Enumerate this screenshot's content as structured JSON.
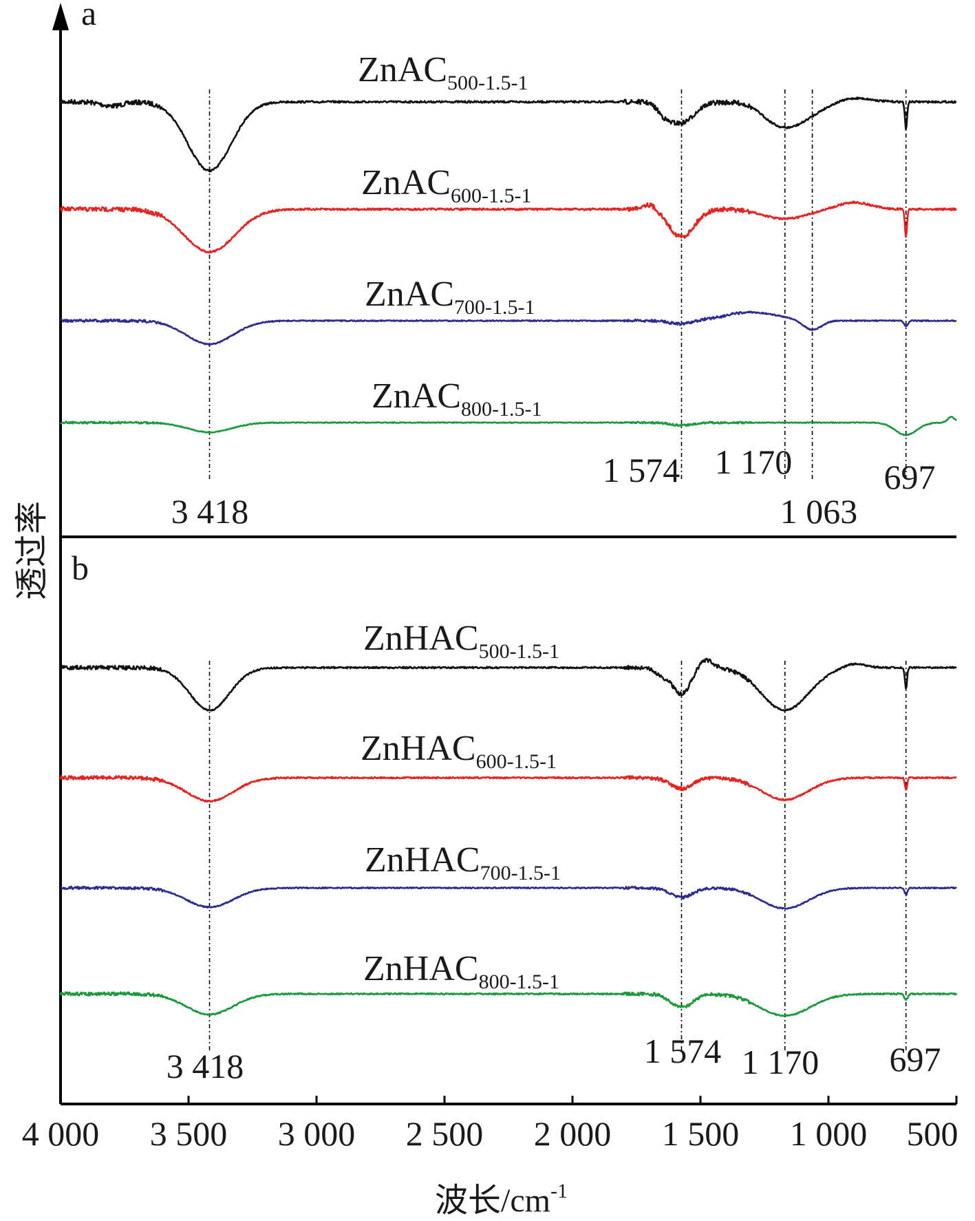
{
  "chart_data": [
    {
      "panel": "a",
      "type": "line",
      "xlim": [
        4000,
        500
      ],
      "x_reversed": true,
      "series": [
        {
          "name": "ZnAC",
          "subscript": "500-1.5-1",
          "color": "#111111",
          "baseline": 0,
          "noise": 1.4,
          "features": [
            {
              "x": 3418,
              "depth": 100,
              "width": 120
            },
            {
              "x": 3800,
              "depth": 6,
              "width": 60
            },
            {
              "x": 1574,
              "depth": 30,
              "width": 70
            },
            {
              "x": 1640,
              "depth": 12,
              "width": 40
            },
            {
              "x": 1170,
              "depth": 38,
              "width": 140
            },
            {
              "x": 1300,
              "depth": -8,
              "width": 80
            },
            {
              "x": 900,
              "depth": -6,
              "width": 90
            },
            {
              "x": 697,
              "depth": 40,
              "width": 6
            }
          ]
        },
        {
          "name": "ZnAC",
          "subscript": "600-1.5-1",
          "color": "#e52320",
          "baseline": 0,
          "noise": 1.4,
          "features": [
            {
              "x": 3418,
              "depth": 62,
              "width": 140
            },
            {
              "x": 1574,
              "depth": 40,
              "width": 70
            },
            {
              "x": 1700,
              "depth": -8,
              "width": 40
            },
            {
              "x": 1170,
              "depth": 14,
              "width": 120
            },
            {
              "x": 900,
              "depth": -10,
              "width": 90
            },
            {
              "x": 697,
              "depth": 40,
              "width": 6
            }
          ]
        },
        {
          "name": "ZnAC",
          "subscript": "700-1.5-1",
          "color": "#2e2d8f",
          "baseline": 0,
          "noise": 0.8,
          "features": [
            {
              "x": 3418,
              "depth": 34,
              "width": 130
            },
            {
              "x": 1574,
              "depth": 5,
              "width": 60
            },
            {
              "x": 1300,
              "depth": -12,
              "width": 150
            },
            {
              "x": 1063,
              "depth": 14,
              "width": 50
            },
            {
              "x": 697,
              "depth": 8,
              "width": 10
            }
          ]
        },
        {
          "name": "ZnAC",
          "subscript": "800-1.5-1",
          "color": "#1a9a3c",
          "baseline": 0,
          "noise": 0.6,
          "features": [
            {
              "x": 3418,
              "depth": 14,
              "width": 120
            },
            {
              "x": 1574,
              "depth": 4,
              "width": 60
            },
            {
              "x": 697,
              "depth": 18,
              "width": 60
            },
            {
              "x": 520,
              "depth": -8,
              "width": 20
            }
          ]
        }
      ],
      "peaks": [
        {
          "x": 3418,
          "label": "3 418"
        },
        {
          "x": 1574,
          "label": "1 574"
        },
        {
          "x": 1170,
          "label": "1 170"
        },
        {
          "x": 1063,
          "label": "1 063"
        },
        {
          "x": 697,
          "label": "697"
        }
      ]
    },
    {
      "panel": "b",
      "type": "line",
      "xlim": [
        4000,
        500
      ],
      "x_reversed": true,
      "series": [
        {
          "name": "ZnHAC",
          "subscript": "500-1.5-1",
          "color": "#111111",
          "baseline": 0,
          "noise": 1.2,
          "features": [
            {
              "x": 3418,
              "depth": 62,
              "width": 110
            },
            {
              "x": 1574,
              "depth": 38,
              "width": 50
            },
            {
              "x": 1650,
              "depth": 10,
              "width": 40
            },
            {
              "x": 1480,
              "depth": -12,
              "width": 40
            },
            {
              "x": 1170,
              "depth": 62,
              "width": 130
            },
            {
              "x": 900,
              "depth": -6,
              "width": 60
            },
            {
              "x": 697,
              "depth": 30,
              "width": 6
            }
          ]
        },
        {
          "name": "ZnHAC",
          "subscript": "600-1.5-1",
          "color": "#e52320",
          "baseline": 0,
          "noise": 1.1,
          "features": [
            {
              "x": 3418,
              "depth": 34,
              "width": 130
            },
            {
              "x": 1574,
              "depth": 16,
              "width": 60
            },
            {
              "x": 1170,
              "depth": 32,
              "width": 130
            },
            {
              "x": 697,
              "depth": 18,
              "width": 6
            }
          ]
        },
        {
          "name": "ZnHAC",
          "subscript": "700-1.5-1",
          "color": "#2e2d8f",
          "baseline": 0,
          "noise": 0.8,
          "features": [
            {
              "x": 3418,
              "depth": 28,
              "width": 130
            },
            {
              "x": 1574,
              "depth": 14,
              "width": 60
            },
            {
              "x": 1170,
              "depth": 30,
              "width": 130
            },
            {
              "x": 697,
              "depth": 10,
              "width": 8
            }
          ]
        },
        {
          "name": "ZnHAC",
          "subscript": "800-1.5-1",
          "color": "#1a9a3c",
          "baseline": 0,
          "noise": 1.0,
          "features": [
            {
              "x": 3418,
              "depth": 30,
              "width": 130
            },
            {
              "x": 1574,
              "depth": 20,
              "width": 60
            },
            {
              "x": 1170,
              "depth": 32,
              "width": 140
            },
            {
              "x": 697,
              "depth": 8,
              "width": 10
            }
          ]
        }
      ],
      "peaks": [
        {
          "x": 3418,
          "label": "3 418"
        },
        {
          "x": 1574,
          "label": "1 574"
        },
        {
          "x": 1170,
          "label": "1 170"
        },
        {
          "x": 697,
          "label": "697"
        }
      ]
    }
  ],
  "axes": {
    "xlabel": "波长/cm",
    "xlabel_sup": "-1",
    "ylabel": "透过率",
    "xticks": [
      {
        "value": 4000,
        "label": "4 000"
      },
      {
        "value": 3500,
        "label": "3 500"
      },
      {
        "value": 3000,
        "label": "3 000"
      },
      {
        "value": 2500,
        "label": "2 500"
      },
      {
        "value": 2000,
        "label": "2 000"
      },
      {
        "value": 1500,
        "label": "1 500"
      },
      {
        "value": 1000,
        "label": "1 000"
      },
      {
        "value": 500,
        "label": "500"
      }
    ]
  }
}
